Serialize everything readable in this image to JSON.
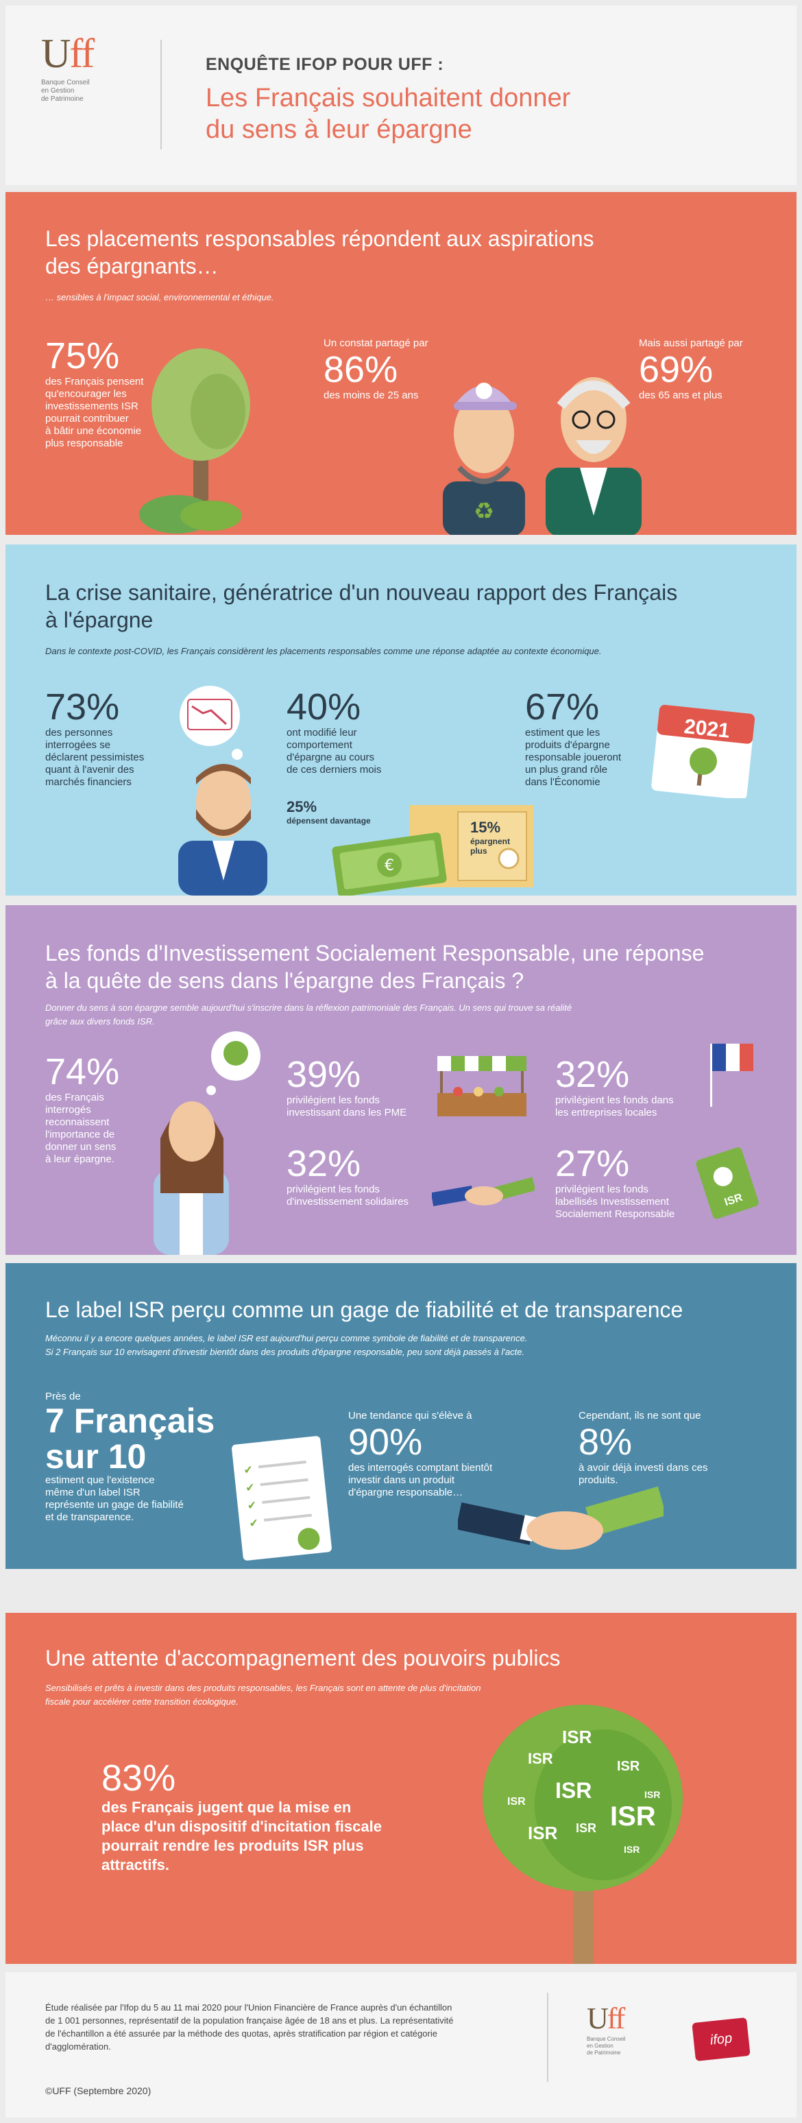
{
  "header": {
    "logo_text_main": "U",
    "logo_text_ff": "ff",
    "logo_subtitle": [
      "Banque Conseil",
      "en Gestion",
      "de Patrimoine"
    ],
    "kicker": "ENQUÊTE IFOP POUR UFF :",
    "title_line1": "Les Français souhaitent donner",
    "title_line2": "du sens à leur épargne"
  },
  "s1": {
    "title_line1": "Les placements responsables répondent aux aspirations",
    "title_line2": "des épargnants…",
    "subtitle": "… sensibles à l'impact social, environnemental et éthique.",
    "stat1": {
      "value": "75%",
      "text": [
        "des Français pensent",
        "qu'encourager les",
        "investissements ISR",
        "pourrait contribuer",
        "à bâtir une économie",
        "plus responsable"
      ]
    },
    "stat2": {
      "intro": "Un constat partagé par",
      "value": "86%",
      "text": "des moins de 25 ans"
    },
    "stat3": {
      "intro": "Mais aussi partagé par",
      "value": "69%",
      "text": "des 65 ans et plus"
    }
  },
  "s2": {
    "title_line1": "La crise sanitaire, génératrice d'un nouveau rapport des Français",
    "title_line2": "à l'épargne",
    "subtitle": "Dans le contexte post-COVID, les Français considèrent les placements responsables comme une réponse adaptée au contexte économique.",
    "stat1": {
      "value": "73%",
      "text": [
        "des personnes",
        "interrogées se",
        "déclarent pessimistes",
        "quant à l'avenir des",
        "marchés financiers"
      ]
    },
    "stat2": {
      "value": "40%",
      "text": [
        "ont modifié leur",
        "comportement",
        "d'épargne au cours",
        "de ces derniers mois"
      ]
    },
    "stat2a": {
      "value": "25%",
      "text": "dépensent davantage"
    },
    "stat2b": {
      "value": "15%",
      "text": [
        "épargnent",
        "plus"
      ]
    },
    "stat3": {
      "value": "67%",
      "text": [
        "estiment que les",
        "produits d'épargne",
        "responsable joueront",
        "un plus grand rôle",
        "dans l'Économie"
      ]
    },
    "calendar_year": "2021",
    "euro_symbol": "€"
  },
  "s3": {
    "title_line1": "Les fonds d'Investissement Socialement Responsable, une réponse",
    "title_line2": "à la quête de sens dans l'épargne des Français ?",
    "subtitle_line1": "Donner du sens à son épargne semble aujourd'hui s'inscrire dans la réflexion patrimoniale des Français. Un sens qui trouve sa réalité",
    "subtitle_line2": "grâce aux divers fonds ISR.",
    "stat1": {
      "value": "74%",
      "text": [
        "des Français",
        "interrogés",
        "reconnaissent",
        "l'importance de",
        "donner un sens",
        "à leur épargne."
      ]
    },
    "stat2": {
      "value": "39%",
      "text": [
        "privilégient les fonds",
        "investissant dans les PME"
      ]
    },
    "stat3": {
      "value": "32%",
      "text": [
        "privilégient les fonds dans",
        "les entreprises locales"
      ]
    },
    "stat4": {
      "value": "32%",
      "text": [
        "privilégient les fonds",
        "d'investissement solidaires"
      ]
    },
    "stat5": {
      "value": "27%",
      "text": [
        "privilégient les fonds",
        "labellisés Investissement",
        "Socialement Responsable"
      ]
    },
    "isr_card_label": "ISR"
  },
  "s4": {
    "title": "Le label ISR perçu comme un gage de fiabilité et de transparence",
    "subtitle_line1": "Méconnu il y a encore quelques années, le label ISR est aujourd'hui perçu comme symbole de fiabilité et de transparence.",
    "subtitle_line2": "Si 2 Français sur 10 envisagent d'investir bientôt dans des produits d'épargne responsable, peu sont déjà passés à l'acte.",
    "stat1": {
      "intro": "Près de",
      "value_line1": "7 Français",
      "value_line2": "sur 10",
      "text": [
        "estiment que l'existence",
        "même d'un label ISR",
        "représente un gage de fiabilité",
        "et de transparence."
      ]
    },
    "stat2": {
      "intro": "Une tendance qui s'élève à",
      "value": "90%",
      "text": [
        "des interrogés comptant bientôt",
        "investir dans un produit",
        "d'épargne responsable…"
      ]
    },
    "stat3": {
      "intro": "Cependant, ils ne sont que",
      "value": "8%",
      "text": [
        "à avoir déjà investi dans ces",
        "produits."
      ]
    }
  },
  "s5": {
    "title": "Une attente d'accompagnement des pouvoirs publics",
    "subtitle_line1": "Sensibilisés et prêts à investir dans des produits responsables, les Français sont en attente de plus d'incitation",
    "subtitle_line2": "fiscale pour accélérer cette transition écologique.",
    "stat": {
      "value": "83%",
      "text": [
        "des Français jugent que la mise en",
        "place d'un dispositif d'incitation fiscale",
        "pourrait rendre les produits ISR plus",
        "attractifs."
      ]
    },
    "tree_label": "ISR"
  },
  "footer": {
    "text": [
      "Étude réalisée par l'Ifop du 5 au 11 mai 2020 pour l'Union Financière de France auprès d'un échantillon",
      "de 1 001 personnes, représentatif de la population française âgée de 18 ans et plus. La représentativité",
      "de l'échantillon a été assurée par la méthode des quotas, après stratification par région et catégorie",
      "d'agglomération."
    ],
    "copyright": "©UFF (Septembre 2020)",
    "logo_subtitle": [
      "Banque Conseil",
      "en Gestion",
      "de Patrimoine"
    ],
    "ifop_label": "ifop"
  },
  "colors": {
    "coral": "#e9735b",
    "light_blue": "#a9dbed",
    "lavender": "#b99acb",
    "steel_blue": "#4e8aa8",
    "green": "#7cb342",
    "dark_navy": "#2d3d4a"
  }
}
